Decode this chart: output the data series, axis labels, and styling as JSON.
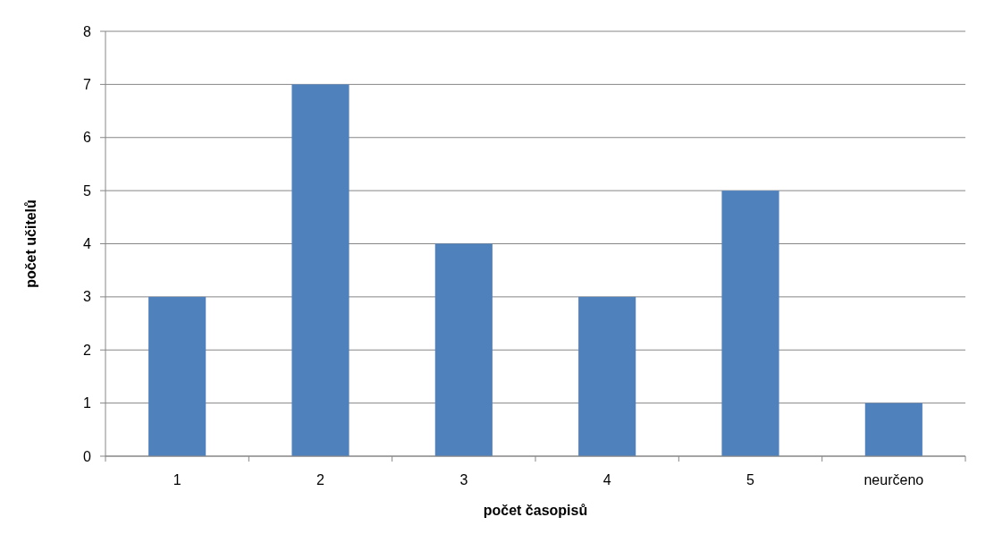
{
  "chart_data": {
    "type": "bar",
    "xlabel": "počet časopisů",
    "ylabel": "počet učitelů",
    "categories": [
      "1",
      "2",
      "3",
      "4",
      "5",
      "neurčeno"
    ],
    "values": [
      3,
      7,
      4,
      3,
      5,
      1
    ],
    "color": "#4f81bd",
    "ylim": [
      0,
      8
    ],
    "yticks": [
      0,
      1,
      2,
      3,
      4,
      5,
      6,
      7,
      8
    ],
    "grid": "y"
  }
}
